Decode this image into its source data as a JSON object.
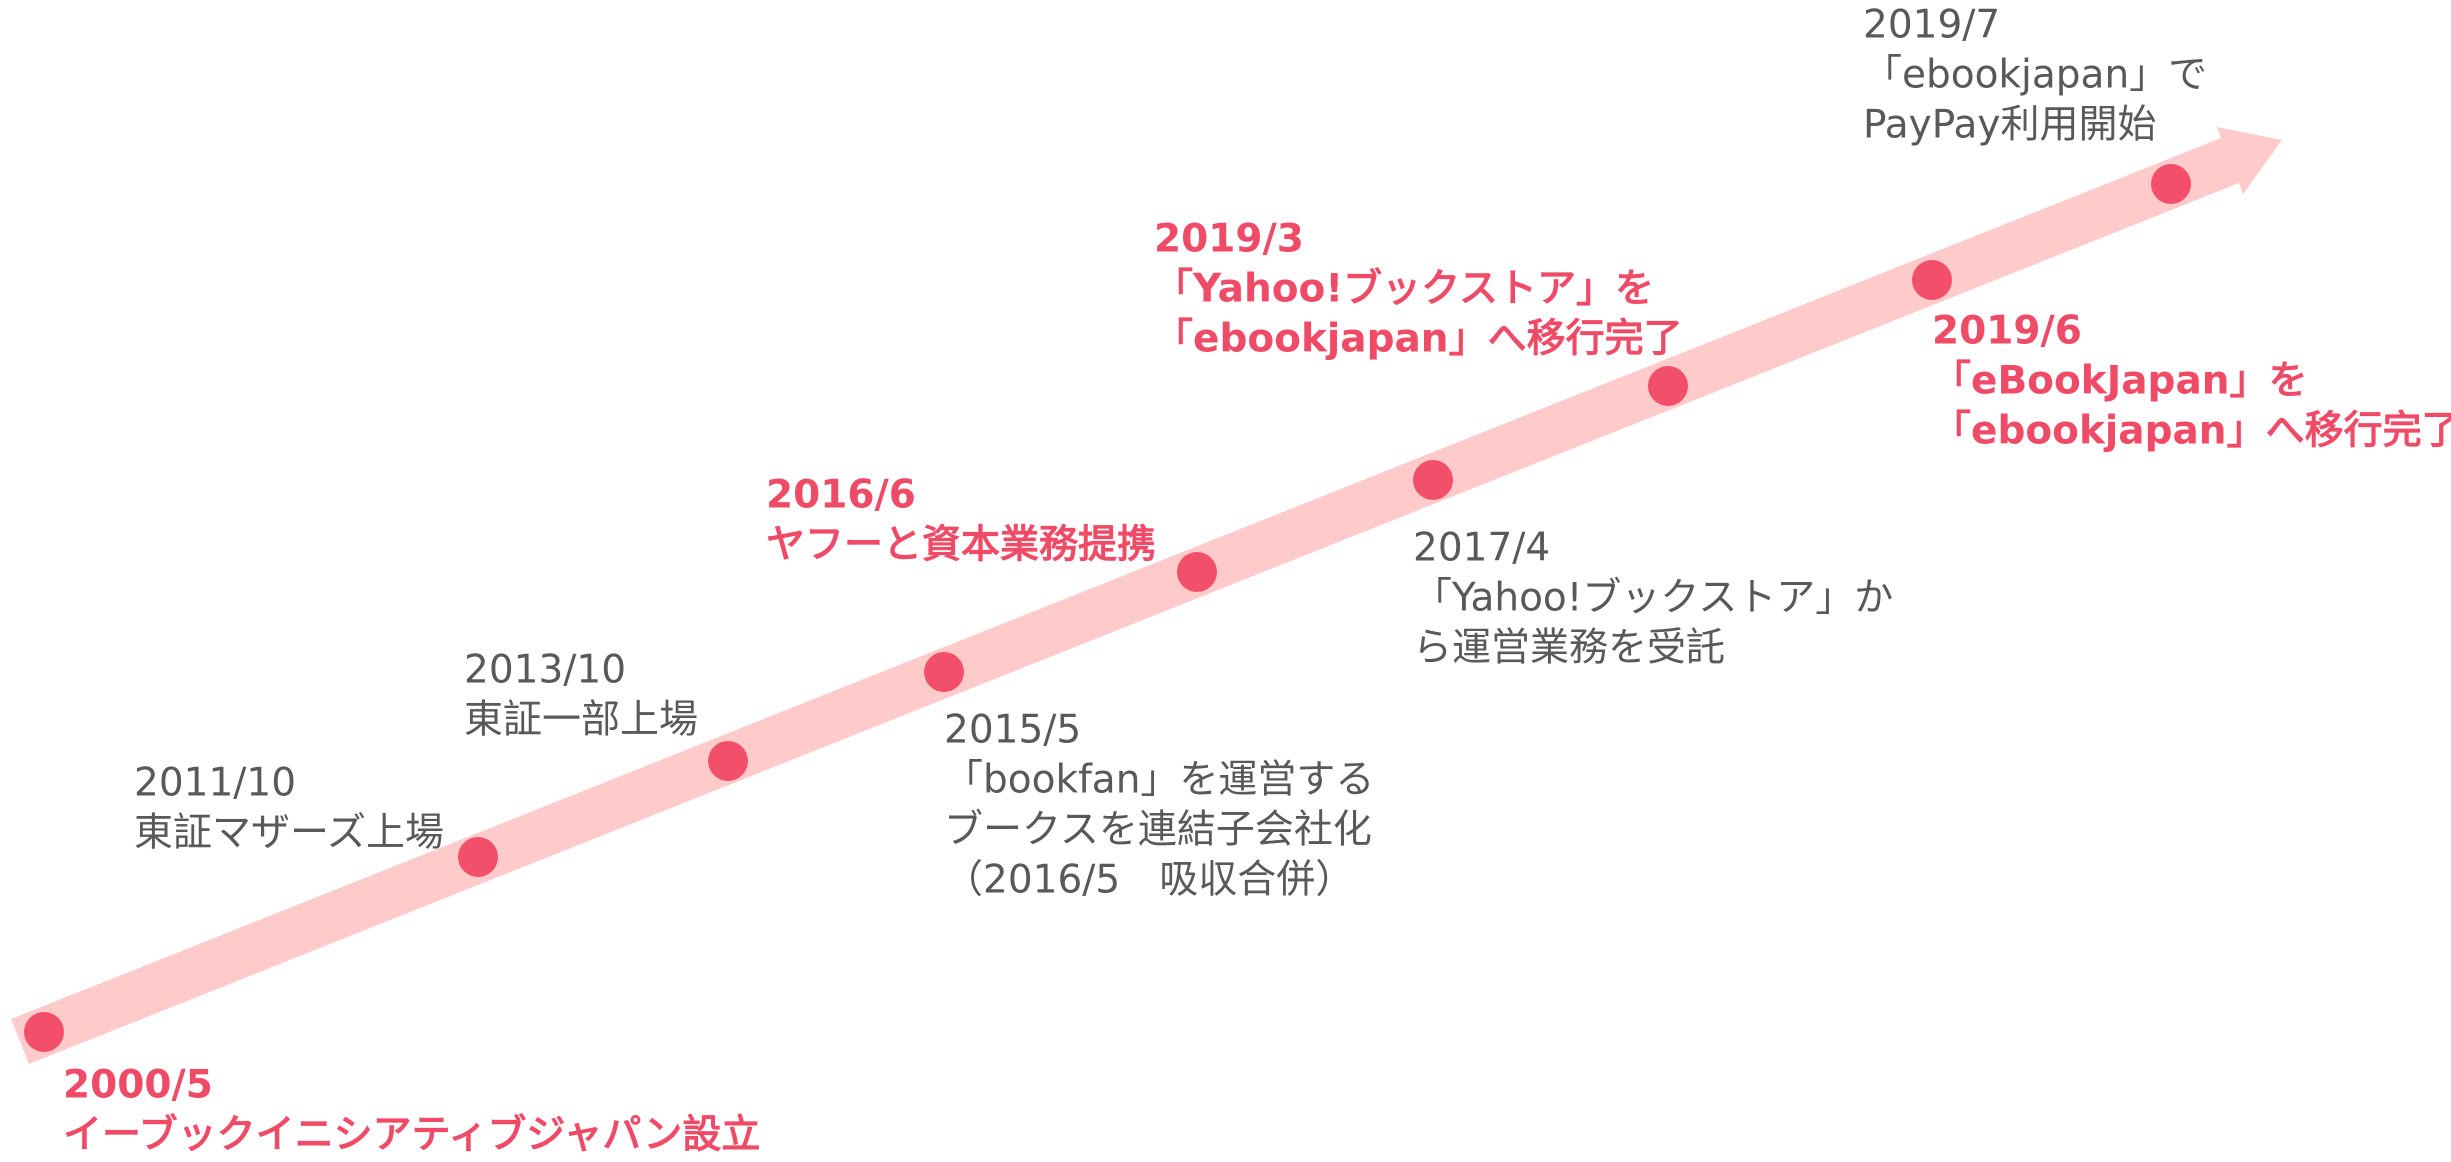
{
  "events": [
    {
      "date": "2000/5",
      "lines": [
        "イーブックイニシアティブジャパン設立"
      ],
      "highlight": true
    },
    {
      "date": "2011/10",
      "lines": [
        "東証マザーズ上場"
      ],
      "highlight": false
    },
    {
      "date": "2013/10",
      "lines": [
        "東証一部上場"
      ],
      "highlight": false
    },
    {
      "date": "2015/5",
      "lines": [
        "「bookfan」を運営する",
        "ブークスを連結子会社化",
        "（2016/5　吸収合併）"
      ],
      "highlight": false
    },
    {
      "date": "2016/6",
      "lines": [
        "ヤフーと資本業務提携"
      ],
      "highlight": true
    },
    {
      "date": "2017/4",
      "lines": [
        "「Yahoo!ブックストア」か",
        "ら運営業務を受託"
      ],
      "highlight": false
    },
    {
      "date": "2019/3",
      "lines": [
        "「Yahoo!ブックストア」を",
        "「ebookjapan」へ移行完了"
      ],
      "highlight": true
    },
    {
      "date": "2019/6",
      "lines": [
        "「eBookJapan」を",
        "「ebookjapan」へ移行完了"
      ],
      "highlight": true
    },
    {
      "date": "2019/7",
      "lines": [
        "「ebookjapan」で",
        "PayPay利用開始"
      ],
      "highlight": false
    }
  ]
}
